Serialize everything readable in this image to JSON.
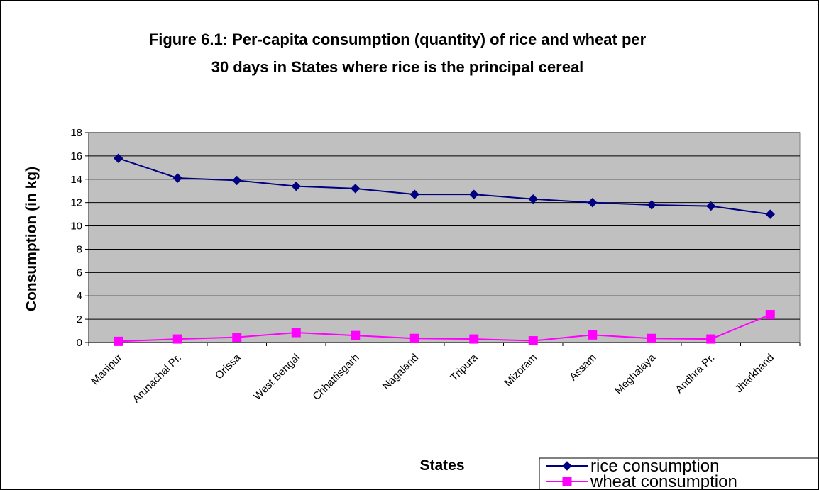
{
  "chart_data": {
    "type": "line",
    "title_line1": "Figure 6.1: Per-capita consumption (quantity) of rice and wheat per",
    "title_line2": "30 days in States where rice is the principal cereal",
    "xlabel": "States",
    "ylabel": "Consumption (in kg)",
    "ylim": [
      0,
      18
    ],
    "yticks": [
      0,
      2,
      4,
      6,
      8,
      10,
      12,
      14,
      16,
      18
    ],
    "grid": "horizontal",
    "legend_position": "bottom-right",
    "categories": [
      "Manipur",
      "Arunachal Pr.",
      "Orissa",
      "West Bengal",
      "Chhattisgarh",
      "Nagaland",
      "Tripura",
      "Mizoram",
      "Assam",
      "Meghalaya",
      "Andhra Pr.",
      "Jharkhand"
    ],
    "series": [
      {
        "name": "rice consumption",
        "color": "#000080",
        "marker": "diamond",
        "values": [
          15.8,
          14.1,
          13.9,
          13.4,
          13.2,
          12.7,
          12.7,
          12.3,
          12.0,
          11.8,
          11.7,
          11.0
        ]
      },
      {
        "name": "wheat consumption",
        "color": "#FF00FF",
        "marker": "square",
        "values": [
          0.1,
          0.3,
          0.45,
          0.85,
          0.6,
          0.35,
          0.3,
          0.15,
          0.65,
          0.35,
          0.3,
          2.4
        ]
      }
    ],
    "plot_background": "#C0C0C0"
  }
}
